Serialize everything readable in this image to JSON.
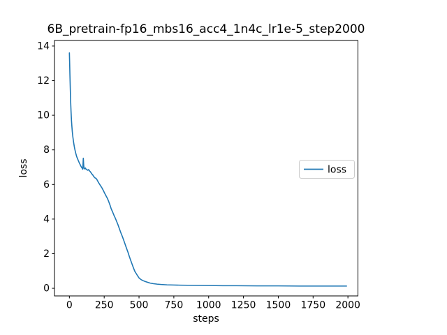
{
  "figure": {
    "title": "6B_pretrain-fp16_mbs16_acc4_1n4c_lr1e-5_step2000",
    "xlabel": "steps",
    "ylabel": "loss",
    "ylabel_color": "#1f77b4",
    "background_color": "#ffffff",
    "spine_color": "#000000"
  },
  "legend": {
    "entries": [
      {
        "label": "loss",
        "color": "#1f77b4"
      }
    ],
    "border_color": "#cccccc",
    "background_color": "#ffffff"
  },
  "chart_data": {
    "type": "line",
    "title": "6B_pretrain-fp16_mbs16_acc4_1n4c_lr1e-5_step2000",
    "xlabel": "steps",
    "ylabel": "loss",
    "grid": false,
    "legend_position": "center right",
    "xlim": [
      -107,
      2072
    ],
    "ylim": [
      -0.44,
      14.32
    ],
    "x_ticks": [
      0,
      250,
      500,
      750,
      1000,
      1250,
      1500,
      1750,
      2000
    ],
    "y_ticks": [
      0,
      2,
      4,
      6,
      8,
      10,
      12,
      14
    ],
    "series": [
      {
        "name": "loss",
        "color": "#1f77b4",
        "x": [
          0,
          2,
          4,
          6,
          8,
          10,
          12,
          15,
          18,
          21,
          25,
          30,
          35,
          40,
          46,
          52,
          58,
          64,
          70,
          76,
          82,
          88,
          93,
          96,
          98,
          100,
          103,
          106,
          110,
          115,
          120,
          126,
          132,
          138,
          145,
          152,
          160,
          168,
          176,
          184,
          192,
          200,
          210,
          218,
          226,
          234,
          242,
          250,
          258,
          266,
          274,
          282,
          290,
          300,
          310,
          320,
          330,
          340,
          350,
          360,
          370,
          380,
          390,
          400,
          410,
          420,
          430,
          440,
          450,
          460,
          470,
          480,
          490,
          500,
          515,
          530,
          545,
          560,
          580,
          600,
          630,
          660,
          700,
          750,
          800,
          900,
          1000,
          1100,
          1200,
          1350,
          1500,
          1650,
          1800,
          1990
        ],
        "y": [
          13.6,
          13.0,
          12.3,
          11.7,
          11.1,
          10.6,
          10.2,
          9.7,
          9.35,
          9.05,
          8.75,
          8.45,
          8.2,
          8.0,
          7.8,
          7.62,
          7.5,
          7.38,
          7.27,
          7.17,
          7.07,
          6.98,
          6.93,
          6.88,
          7.2,
          7.52,
          7.1,
          6.92,
          6.9,
          6.95,
          6.88,
          6.85,
          6.82,
          6.86,
          6.78,
          6.72,
          6.62,
          6.55,
          6.45,
          6.38,
          6.35,
          6.25,
          6.1,
          6.0,
          5.9,
          5.8,
          5.68,
          5.55,
          5.42,
          5.3,
          5.18,
          5.02,
          4.85,
          4.6,
          4.42,
          4.22,
          4.05,
          3.85,
          3.65,
          3.42,
          3.2,
          3.0,
          2.78,
          2.55,
          2.32,
          2.1,
          1.85,
          1.62,
          1.4,
          1.18,
          0.98,
          0.85,
          0.72,
          0.6,
          0.5,
          0.44,
          0.39,
          0.35,
          0.3,
          0.27,
          0.24,
          0.22,
          0.2,
          0.19,
          0.18,
          0.17,
          0.16,
          0.15,
          0.15,
          0.14,
          0.14,
          0.13,
          0.13,
          0.13
        ]
      }
    ]
  }
}
